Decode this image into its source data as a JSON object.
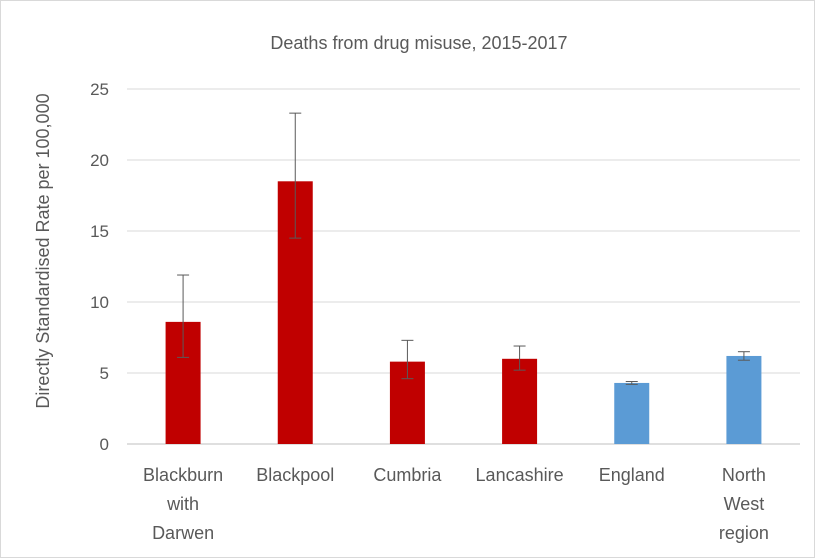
{
  "chart_data": {
    "type": "bar",
    "title": "Deaths from drug misuse, 2015-2017",
    "xlabel": "",
    "ylabel": "Directly Standardised Rate per 100,000",
    "ylim": [
      0,
      25
    ],
    "yticks": [
      0,
      5,
      10,
      15,
      20,
      25
    ],
    "grid": true,
    "legend": "none",
    "categories": [
      [
        "Blackburn",
        "with",
        "Darwen"
      ],
      [
        "Blackpool"
      ],
      [
        "Cumbria"
      ],
      [
        "Lancashire"
      ],
      [
        "England"
      ],
      [
        "North",
        "West",
        "region"
      ]
    ],
    "values": [
      8.6,
      18.5,
      5.8,
      6.0,
      4.3,
      6.2
    ],
    "error_low": [
      6.1,
      14.5,
      4.6,
      5.2,
      4.2,
      5.9
    ],
    "error_high": [
      11.9,
      23.3,
      7.3,
      6.9,
      4.4,
      6.5
    ],
    "colors": [
      "#c00000",
      "#c00000",
      "#c00000",
      "#c00000",
      "#5b9bd5",
      "#5b9bd5"
    ]
  }
}
